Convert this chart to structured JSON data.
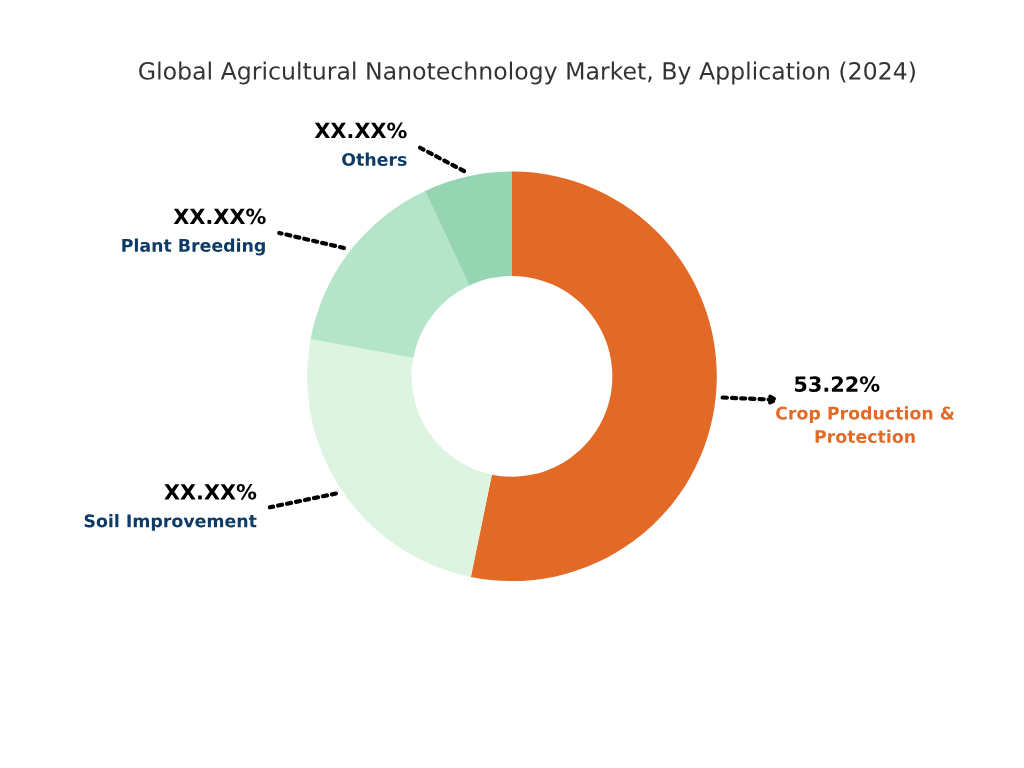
{
  "chart_data": {
    "type": "donut",
    "title": "Global Agricultural Nanotechnology Market, By Application (2024)",
    "categories": [
      "Crop Production & Protection",
      "Soil Improvement",
      "Plant Breeding",
      "Others"
    ],
    "values": [
      53.22,
      24.7,
      15.1,
      6.98
    ],
    "value_labels": [
      "53.22%",
      "XX.XX%",
      "XX.XX%",
      "XX.XX%"
    ],
    "colors": [
      "#e36a26",
      "#dcf4e0",
      "#b5e5c8",
      "#95d5b2"
    ],
    "legend": false
  }
}
